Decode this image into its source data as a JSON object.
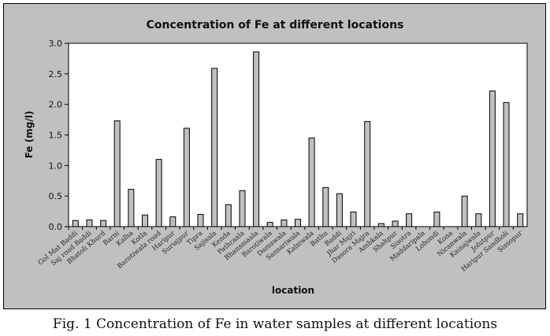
{
  "caption": "Fig. 1 Concentration of Fe in water samples at different locations",
  "chart_data": {
    "type": "bar",
    "title": "Concentration of Fe at different locations",
    "xlabel": "location",
    "ylabel": "Fe (mg/l)",
    "ylim": [
      0,
      3.0
    ],
    "yticks": [
      "0.0",
      "0.5",
      "1.0",
      "1.5",
      "2.0",
      "2.5",
      "3.0"
    ],
    "grid": false,
    "legend": "none",
    "colors": {
      "frame": "#c0c0c0",
      "plot": "#ffffff",
      "bar": "#c0c0c0",
      "stroke": "#000000"
    },
    "categories": [
      "Gol Mat Baddi",
      "Saj road Baddi",
      "Bhatoli Khurd",
      "Barni",
      "Kalha",
      "Kotla",
      "Barotiwala road",
      "Haripur",
      "Suriajpur",
      "Tipra",
      "Sajisala",
      "Kenda",
      "Pathraala",
      "Bhansmaala",
      "Barotiwala",
      "Damswala",
      "Sansariwala",
      "Kalsiwala",
      "Bathu",
      "Baddi",
      "Jhar Majri",
      "Dasora Majra",
      "Ambkala",
      "Shahpur",
      "Sisotra",
      "Maddaripala",
      "Lohondi",
      "Kona",
      "Nicanwala",
      "Kainajwala",
      "Jolutpur",
      "Haripur Sandholi",
      "Sissopur"
    ],
    "values": [
      0.1,
      0.11,
      0.1,
      1.73,
      0.61,
      0.19,
      1.1,
      0.16,
      1.61,
      0.2,
      2.59,
      0.36,
      0.59,
      2.86,
      0.07,
      0.11,
      0.12,
      1.45,
      0.64,
      0.54,
      0.24,
      1.72,
      0.05,
      0.09,
      0.21,
      0.0,
      0.24,
      0.0,
      0.5,
      0.21,
      2.22,
      2.03,
      0.21
    ]
  }
}
